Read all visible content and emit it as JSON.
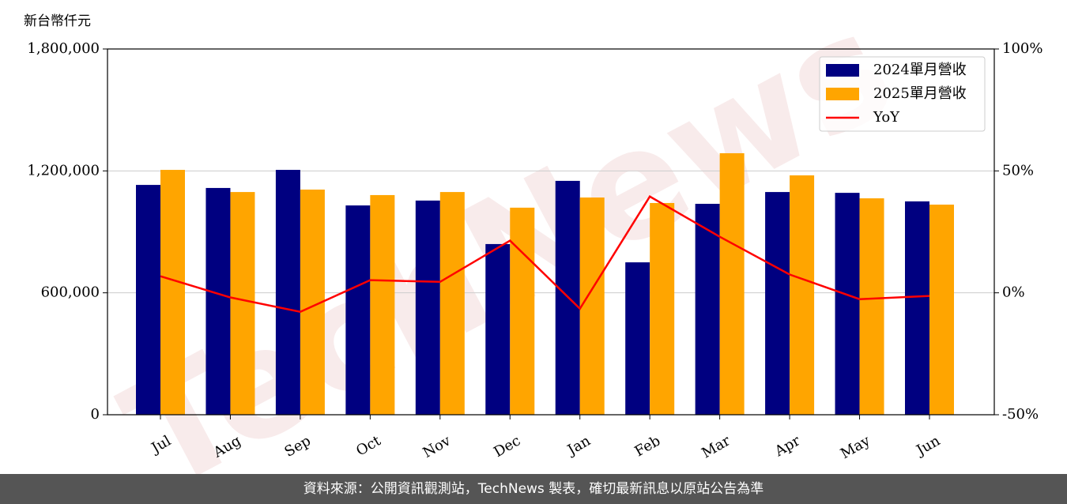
{
  "chart_data": {
    "type": "bar",
    "y_label": "新台幣仟元",
    "watermark": "TechNews",
    "categories": [
      "Jul",
      "Aug",
      "Sep",
      "Oct",
      "Nov",
      "Dec",
      "Jan",
      "Feb",
      "Mar",
      "Apr",
      "May",
      "Jun"
    ],
    "series": [
      {
        "name": "2024單月營收",
        "color": "#000080",
        "values": [
          1131000,
          1116000,
          1205000,
          1030000,
          1054000,
          840000,
          1151000,
          750000,
          1038000,
          1096000,
          1092000,
          1050000
        ]
      },
      {
        "name": "2025單月營收",
        "color": "#ffa500",
        "values": [
          1205000,
          1096000,
          1108000,
          1081000,
          1096000,
          1019000,
          1069000,
          1042000,
          1287000,
          1178000,
          1065000,
          1034000
        ]
      },
      {
        "name": "YoY",
        "type": "line",
        "axis": "y2",
        "color": "#ff0000",
        "values": [
          6.8,
          -1.9,
          -7.8,
          5.2,
          4.5,
          21.4,
          -6.5,
          39.5,
          23,
          7.5,
          -2.6,
          -1.3
        ]
      }
    ],
    "ylim": [
      0,
      1800000
    ],
    "yticks": [
      0,
      {
        "value": 600000,
        "label": "600,000"
      },
      {
        "value": 1200000,
        "label": "1,200,000"
      },
      {
        "value": 1800000,
        "label": "1,800,000"
      }
    ],
    "y2lim": [
      -50,
      100
    ],
    "y2ticks": [
      {
        "value": -50,
        "label": "-50%"
      },
      {
        "value": 0,
        "label": "0%"
      },
      {
        "value": 50,
        "label": "50%"
      },
      {
        "value": 100,
        "label": "100%"
      }
    ],
    "grid": true,
    "legend": "upper right"
  },
  "footer": "資料來源：公開資訊觀測站，TechNews 製表，確切最新訊息以原站公告為準"
}
